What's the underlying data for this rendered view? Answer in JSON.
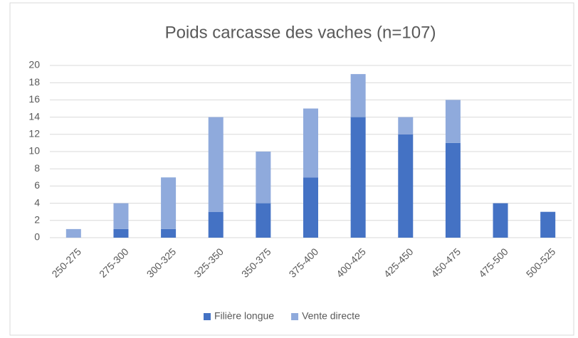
{
  "chart_data": {
    "type": "stacked_bar",
    "title": "Poids carcasse des vaches (n=107)",
    "categories": [
      "250-275",
      "275-300",
      "300-325",
      "325-350",
      "350-375",
      "375-400",
      "400-425",
      "425-450",
      "450-475",
      "475-500",
      "500-525"
    ],
    "series": [
      {
        "name": "Filière longue",
        "color": "#4472c4",
        "values": [
          0,
          1,
          1,
          3,
          4,
          7,
          14,
          12,
          11,
          4,
          3
        ]
      },
      {
        "name": "Vente directe",
        "color": "#8faadc",
        "values": [
          1,
          3,
          6,
          11,
          6,
          8,
          5,
          2,
          5,
          0,
          0
        ]
      }
    ],
    "ylim": [
      0,
      20
    ],
    "yticks": [
      0,
      2,
      4,
      6,
      8,
      10,
      12,
      14,
      16,
      18,
      20
    ],
    "grid": true,
    "legend": "bottom"
  }
}
